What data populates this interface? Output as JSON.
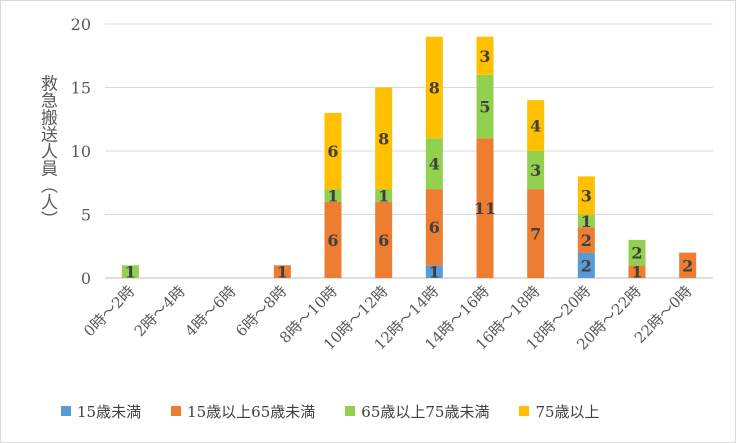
{
  "chart_data": {
    "type": "bar",
    "stacked": true,
    "ylabel": "救急搬送人員（人）",
    "ylim": [
      0,
      20
    ],
    "yticks": [
      0,
      5,
      10,
      15,
      20
    ],
    "grid": true,
    "legend_position": "bottom",
    "categories": [
      "0時～2時",
      "2時～4時",
      "4時～6時",
      "6時～8時",
      "8時～10時",
      "10時～12時",
      "12時～14時",
      "14時～16時",
      "16時～18時",
      "18時～20時",
      "20時～22時",
      "22時～0時"
    ],
    "series": [
      {
        "name": "15歳未満",
        "color": "#5b9bd5",
        "values": [
          0,
          0,
          0,
          0,
          0,
          0,
          1,
          0,
          0,
          2,
          0,
          0
        ]
      },
      {
        "name": "15歳以上65歳未満",
        "color": "#ed7d31",
        "values": [
          0,
          0,
          0,
          1,
          6,
          6,
          6,
          11,
          7,
          2,
          1,
          2
        ]
      },
      {
        "name": "65歳以上75歳未満",
        "color": "#92d050",
        "values": [
          1,
          0,
          0,
          0,
          1,
          1,
          4,
          5,
          3,
          1,
          2,
          0
        ]
      },
      {
        "name": "75歳以上",
        "color": "#ffc000",
        "values": [
          0,
          0,
          0,
          0,
          6,
          8,
          8,
          3,
          4,
          3,
          0,
          0
        ]
      }
    ]
  }
}
